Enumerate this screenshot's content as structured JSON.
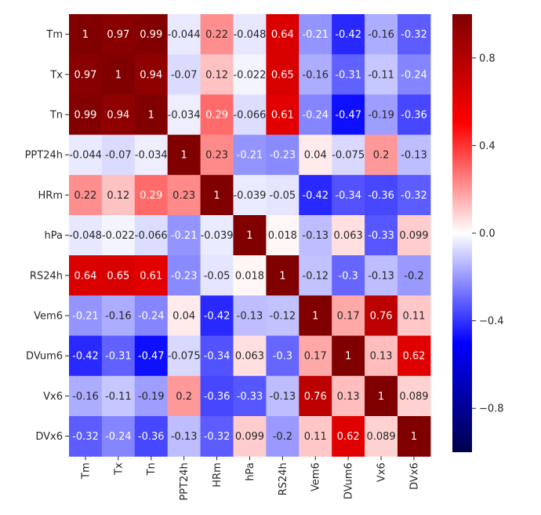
{
  "chart_data": {
    "type": "heatmap",
    "title": "",
    "xlabel": "",
    "ylabel": "",
    "variables": [
      "Tm",
      "Tx",
      "Tn",
      "PPT24h",
      "HRm",
      "hPa",
      "RS24h",
      "Vem6",
      "DVum6",
      "Vx6",
      "DVx6"
    ],
    "matrix": [
      [
        1,
        0.97,
        0.99,
        -0.044,
        0.22,
        -0.048,
        0.64,
        -0.21,
        -0.42,
        -0.16,
        -0.32
      ],
      [
        0.97,
        1,
        0.94,
        -0.07,
        0.12,
        -0.022,
        0.65,
        -0.16,
        -0.31,
        -0.11,
        -0.24
      ],
      [
        0.99,
        0.94,
        1,
        -0.034,
        0.29,
        -0.066,
        0.61,
        -0.24,
        -0.47,
        -0.19,
        -0.36
      ],
      [
        -0.044,
        -0.07,
        -0.034,
        1,
        0.23,
        -0.21,
        -0.23,
        0.04,
        -0.075,
        0.2,
        -0.13
      ],
      [
        0.22,
        0.12,
        0.29,
        0.23,
        1,
        -0.039,
        -0.05,
        -0.42,
        -0.34,
        -0.36,
        -0.32
      ],
      [
        -0.048,
        -0.022,
        -0.066,
        -0.21,
        -0.039,
        1,
        0.018,
        -0.13,
        0.063,
        -0.33,
        0.099
      ],
      [
        0.64,
        0.65,
        0.61,
        -0.23,
        -0.05,
        0.018,
        1,
        -0.12,
        -0.3,
        -0.13,
        -0.2
      ],
      [
        -0.21,
        -0.16,
        -0.24,
        0.04,
        -0.42,
        -0.13,
        -0.12,
        1,
        0.17,
        0.76,
        0.11
      ],
      [
        -0.42,
        -0.31,
        -0.47,
        -0.075,
        -0.34,
        0.063,
        -0.3,
        0.17,
        1,
        0.13,
        0.62
      ],
      [
        -0.16,
        -0.11,
        -0.19,
        0.2,
        -0.36,
        -0.33,
        -0.13,
        0.76,
        0.13,
        1,
        0.089
      ],
      [
        -0.32,
        -0.24,
        -0.36,
        -0.13,
        -0.32,
        0.099,
        -0.2,
        0.11,
        0.62,
        0.089,
        1
      ]
    ],
    "annotations": true,
    "colormap": "seismic",
    "colormap_stops": [
      "#00004c",
      "#0000ff",
      "#ffffff",
      "#ff0000",
      "#800000"
    ],
    "vmin": -1,
    "vmax": 1,
    "colorbar_ticks": [
      0.8,
      0.4,
      0.0,
      -0.4,
      -0.8
    ],
    "colorbar_tick_labels": [
      "0.8",
      "0.4",
      "0.0",
      "−0.4",
      "−0.8"
    ],
    "legend_position": "right"
  }
}
